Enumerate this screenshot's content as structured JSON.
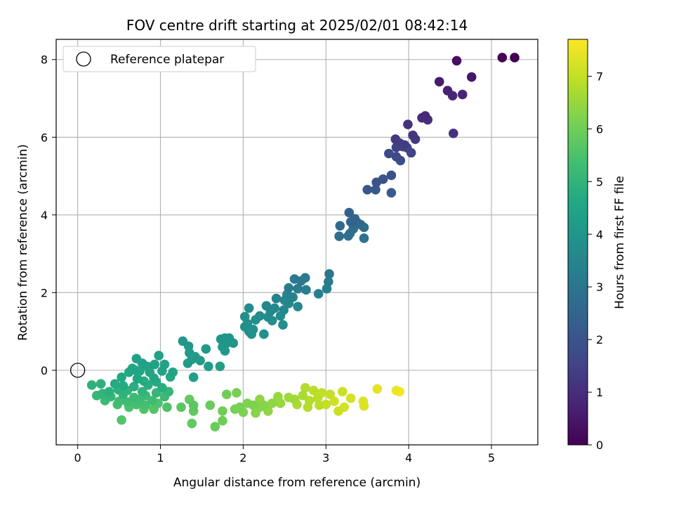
{
  "chart_data": {
    "type": "scatter",
    "title": "FOV centre drift starting at 2025/02/01 08:42:14",
    "xlabel": "Angular distance from reference (arcmin)",
    "ylabel": "Rotation from reference (arcmin)",
    "xlim": [
      -0.26,
      5.56
    ],
    "ylim": [
      -1.92,
      8.52
    ],
    "xticks": [
      0,
      1,
      2,
      3,
      4,
      5
    ],
    "yticks": [
      0,
      2,
      4,
      6,
      8
    ],
    "grid": true,
    "legend": {
      "location": "upper-left",
      "entries": [
        {
          "label": "Reference platepar",
          "marker": "open-circle",
          "color": "#000000"
        }
      ]
    },
    "reference_point": {
      "x": 0,
      "y": 0
    },
    "colorbar": {
      "label": "Hours from first FF file",
      "range": [
        0,
        7.7
      ],
      "ticks": [
        0,
        1,
        2,
        3,
        4,
        5,
        6,
        7
      ],
      "colormap": "viridis"
    },
    "points": [
      {
        "x": 5.28,
        "y": 8.05,
        "hours": 0.0
      },
      {
        "x": 5.13,
        "y": 8.05,
        "hours": 0.1
      },
      {
        "x": 4.58,
        "y": 7.97,
        "hours": 0.3
      },
      {
        "x": 4.76,
        "y": 7.55,
        "hours": 0.5
      },
      {
        "x": 4.37,
        "y": 7.43,
        "hours": 0.6
      },
      {
        "x": 4.47,
        "y": 7.2,
        "hours": 0.7
      },
      {
        "x": 4.65,
        "y": 7.1,
        "hours": 0.8
      },
      {
        "x": 4.53,
        "y": 7.07,
        "hours": 0.8
      },
      {
        "x": 4.2,
        "y": 6.55,
        "hours": 0.9
      },
      {
        "x": 4.16,
        "y": 6.5,
        "hours": 1.0
      },
      {
        "x": 4.23,
        "y": 6.45,
        "hours": 1.0
      },
      {
        "x": 3.99,
        "y": 6.33,
        "hours": 1.1
      },
      {
        "x": 4.54,
        "y": 6.1,
        "hours": 1.1
      },
      {
        "x": 4.05,
        "y": 6.05,
        "hours": 1.2
      },
      {
        "x": 3.84,
        "y": 5.95,
        "hours": 1.3
      },
      {
        "x": 4.08,
        "y": 5.95,
        "hours": 1.3
      },
      {
        "x": 3.89,
        "y": 5.85,
        "hours": 1.4
      },
      {
        "x": 3.95,
        "y": 5.8,
        "hours": 1.4
      },
      {
        "x": 3.93,
        "y": 5.76,
        "hours": 1.5
      },
      {
        "x": 3.85,
        "y": 5.74,
        "hours": 1.5
      },
      {
        "x": 3.98,
        "y": 5.73,
        "hours": 1.6
      },
      {
        "x": 4.03,
        "y": 5.6,
        "hours": 1.6
      },
      {
        "x": 3.76,
        "y": 5.58,
        "hours": 1.7
      },
      {
        "x": 3.85,
        "y": 5.5,
        "hours": 1.7
      },
      {
        "x": 3.9,
        "y": 5.4,
        "hours": 1.8
      },
      {
        "x": 3.79,
        "y": 5.02,
        "hours": 1.9
      },
      {
        "x": 3.69,
        "y": 4.92,
        "hours": 2.0
      },
      {
        "x": 3.61,
        "y": 4.84,
        "hours": 2.0
      },
      {
        "x": 3.5,
        "y": 4.65,
        "hours": 2.1
      },
      {
        "x": 3.6,
        "y": 4.65,
        "hours": 2.1
      },
      {
        "x": 3.79,
        "y": 4.57,
        "hours": 2.2
      },
      {
        "x": 3.28,
        "y": 4.06,
        "hours": 2.4
      },
      {
        "x": 3.35,
        "y": 3.9,
        "hours": 2.5
      },
      {
        "x": 3.3,
        "y": 3.82,
        "hours": 2.5
      },
      {
        "x": 3.38,
        "y": 3.8,
        "hours": 2.6
      },
      {
        "x": 3.42,
        "y": 3.75,
        "hours": 2.6
      },
      {
        "x": 3.17,
        "y": 3.72,
        "hours": 2.6
      },
      {
        "x": 3.46,
        "y": 3.68,
        "hours": 2.7
      },
      {
        "x": 3.33,
        "y": 3.64,
        "hours": 2.7
      },
      {
        "x": 3.29,
        "y": 3.52,
        "hours": 2.8
      },
      {
        "x": 3.27,
        "y": 3.46,
        "hours": 2.8
      },
      {
        "x": 3.16,
        "y": 3.45,
        "hours": 2.8
      },
      {
        "x": 3.46,
        "y": 3.4,
        "hours": 2.9
      },
      {
        "x": 3.04,
        "y": 2.48,
        "hours": 3.0
      },
      {
        "x": 2.62,
        "y": 2.35,
        "hours": 3.1
      },
      {
        "x": 2.75,
        "y": 2.38,
        "hours": 3.1
      },
      {
        "x": 2.7,
        "y": 2.3,
        "hours": 3.1
      },
      {
        "x": 3.03,
        "y": 2.28,
        "hours": 3.2
      },
      {
        "x": 2.55,
        "y": 2.12,
        "hours": 3.2
      },
      {
        "x": 2.66,
        "y": 2.1,
        "hours": 3.2
      },
      {
        "x": 2.76,
        "y": 2.07,
        "hours": 3.3
      },
      {
        "x": 3.01,
        "y": 2.1,
        "hours": 3.3
      },
      {
        "x": 2.91,
        "y": 1.97,
        "hours": 3.3
      },
      {
        "x": 2.53,
        "y": 1.95,
        "hours": 3.4
      },
      {
        "x": 2.6,
        "y": 1.88,
        "hours": 3.4
      },
      {
        "x": 2.4,
        "y": 1.85,
        "hours": 3.4
      },
      {
        "x": 2.5,
        "y": 1.8,
        "hours": 3.5
      },
      {
        "x": 2.55,
        "y": 1.72,
        "hours": 3.5
      },
      {
        "x": 2.28,
        "y": 1.66,
        "hours": 3.5
      },
      {
        "x": 2.38,
        "y": 1.6,
        "hours": 3.6
      },
      {
        "x": 2.66,
        "y": 1.64,
        "hours": 3.6
      },
      {
        "x": 2.49,
        "y": 1.55,
        "hours": 3.6
      },
      {
        "x": 2.33,
        "y": 1.52,
        "hours": 3.6
      },
      {
        "x": 2.07,
        "y": 1.6,
        "hours": 3.7
      },
      {
        "x": 2.2,
        "y": 1.4,
        "hours": 3.7
      },
      {
        "x": 2.3,
        "y": 1.37,
        "hours": 3.7
      },
      {
        "x": 2.45,
        "y": 1.4,
        "hours": 3.7
      },
      {
        "x": 2.02,
        "y": 1.38,
        "hours": 3.8
      },
      {
        "x": 2.15,
        "y": 1.3,
        "hours": 3.8
      },
      {
        "x": 2.35,
        "y": 1.28,
        "hours": 3.8
      },
      {
        "x": 2.05,
        "y": 1.2,
        "hours": 3.8
      },
      {
        "x": 2.48,
        "y": 1.17,
        "hours": 3.8
      },
      {
        "x": 2.02,
        "y": 1.12,
        "hours": 3.9
      },
      {
        "x": 2.12,
        "y": 1.05,
        "hours": 3.9
      },
      {
        "x": 2.07,
        "y": 1.0,
        "hours": 3.9
      },
      {
        "x": 2.25,
        "y": 0.93,
        "hours": 3.9
      },
      {
        "x": 2.1,
        "y": 0.93,
        "hours": 3.9
      },
      {
        "x": 1.78,
        "y": 0.83,
        "hours": 4.0
      },
      {
        "x": 1.83,
        "y": 0.83,
        "hours": 4.0
      },
      {
        "x": 1.73,
        "y": 0.8,
        "hours": 4.0
      },
      {
        "x": 1.8,
        "y": 0.7,
        "hours": 4.0
      },
      {
        "x": 1.88,
        "y": 0.7,
        "hours": 4.0
      },
      {
        "x": 1.27,
        "y": 0.75,
        "hours": 4.1
      },
      {
        "x": 1.75,
        "y": 0.6,
        "hours": 4.1
      },
      {
        "x": 1.34,
        "y": 0.62,
        "hours": 4.1
      },
      {
        "x": 1.78,
        "y": 0.5,
        "hours": 4.1
      },
      {
        "x": 1.55,
        "y": 0.55,
        "hours": 4.1
      },
      {
        "x": 1.35,
        "y": 0.45,
        "hours": 4.2
      },
      {
        "x": 1.42,
        "y": 0.35,
        "hours": 4.2
      },
      {
        "x": 1.38,
        "y": 0.28,
        "hours": 4.2
      },
      {
        "x": 1.48,
        "y": 0.25,
        "hours": 4.2
      },
      {
        "x": 1.33,
        "y": 0.18,
        "hours": 4.2
      },
      {
        "x": 1.58,
        "y": 0.1,
        "hours": 4.3
      },
      {
        "x": 1.72,
        "y": 0.1,
        "hours": 4.3
      },
      {
        "x": 1.4,
        "y": -0.18,
        "hours": 4.3
      },
      {
        "x": 0.98,
        "y": 0.38,
        "hours": 4.4
      },
      {
        "x": 0.71,
        "y": 0.3,
        "hours": 4.4
      },
      {
        "x": 0.93,
        "y": 0.15,
        "hours": 4.4
      },
      {
        "x": 1.05,
        "y": 0.15,
        "hours": 4.4
      },
      {
        "x": 0.78,
        "y": 0.18,
        "hours": 4.4
      },
      {
        "x": 0.84,
        "y": 0.1,
        "hours": 4.5
      },
      {
        "x": 0.66,
        "y": 0.05,
        "hours": 4.5
      },
      {
        "x": 0.7,
        "y": 0.0,
        "hours": 4.5
      },
      {
        "x": 0.75,
        "y": -0.02,
        "hours": 4.5
      },
      {
        "x": 0.87,
        "y": -0.05,
        "hours": 4.5
      },
      {
        "x": 1.02,
        "y": -0.02,
        "hours": 4.5
      },
      {
        "x": 1.15,
        "y": -0.05,
        "hours": 4.5
      },
      {
        "x": 0.62,
        "y": -0.05,
        "hours": 4.6
      },
      {
        "x": 0.53,
        "y": -0.18,
        "hours": 4.6
      },
      {
        "x": 0.92,
        "y": -0.2,
        "hours": 4.6
      },
      {
        "x": 0.72,
        "y": -0.22,
        "hours": 4.6
      },
      {
        "x": 1.12,
        "y": -0.17,
        "hours": 4.6
      },
      {
        "x": 0.8,
        "y": -0.28,
        "hours": 4.7
      },
      {
        "x": 0.95,
        "y": -0.3,
        "hours": 4.7
      },
      {
        "x": 0.45,
        "y": -0.35,
        "hours": 4.7
      },
      {
        "x": 0.55,
        "y": -0.4,
        "hours": 4.7
      },
      {
        "x": 0.68,
        "y": -0.42,
        "hours": 4.8
      },
      {
        "x": 0.85,
        "y": -0.38,
        "hours": 4.8
      },
      {
        "x": 1.02,
        "y": -0.45,
        "hours": 4.8
      },
      {
        "x": 0.17,
        "y": -0.38,
        "hours": 4.9
      },
      {
        "x": 0.28,
        "y": -0.35,
        "hours": 4.9
      },
      {
        "x": 0.49,
        "y": -0.5,
        "hours": 4.9
      },
      {
        "x": 0.38,
        "y": -0.55,
        "hours": 4.9
      },
      {
        "x": 0.6,
        "y": -0.52,
        "hours": 5.0
      },
      {
        "x": 0.78,
        "y": -0.55,
        "hours": 5.0
      },
      {
        "x": 0.3,
        "y": -0.6,
        "hours": 5.0
      },
      {
        "x": 0.55,
        "y": -0.62,
        "hours": 5.0
      },
      {
        "x": 0.95,
        "y": -0.58,
        "hours": 5.1
      },
      {
        "x": 1.1,
        "y": -0.55,
        "hours": 5.1
      },
      {
        "x": 0.23,
        "y": -0.65,
        "hours": 5.1
      },
      {
        "x": 0.4,
        "y": -0.68,
        "hours": 5.1
      },
      {
        "x": 0.68,
        "y": -0.7,
        "hours": 5.2
      },
      {
        "x": 0.82,
        "y": -0.65,
        "hours": 5.2
      },
      {
        "x": 1.05,
        "y": -0.68,
        "hours": 5.2
      },
      {
        "x": 0.33,
        "y": -0.78,
        "hours": 5.2
      },
      {
        "x": 0.5,
        "y": -0.8,
        "hours": 5.3
      },
      {
        "x": 0.75,
        "y": -0.75,
        "hours": 5.3
      },
      {
        "x": 0.9,
        "y": -0.78,
        "hours": 5.3
      },
      {
        "x": 0.6,
        "y": -0.82,
        "hours": 5.3
      },
      {
        "x": 0.48,
        "y": -0.88,
        "hours": 5.4
      },
      {
        "x": 0.71,
        "y": -0.88,
        "hours": 5.4
      },
      {
        "x": 0.82,
        "y": -0.9,
        "hours": 5.4
      },
      {
        "x": 0.97,
        "y": -0.85,
        "hours": 5.5
      },
      {
        "x": 0.62,
        "y": -0.95,
        "hours": 5.5
      },
      {
        "x": 1.08,
        "y": -0.95,
        "hours": 5.5
      },
      {
        "x": 0.8,
        "y": -1.0,
        "hours": 5.6
      },
      {
        "x": 0.92,
        "y": -1.0,
        "hours": 5.6
      },
      {
        "x": 0.53,
        "y": -1.28,
        "hours": 5.6
      },
      {
        "x": 1.25,
        "y": -0.95,
        "hours": 5.7
      },
      {
        "x": 1.4,
        "y": -0.9,
        "hours": 5.7
      },
      {
        "x": 1.35,
        "y": -0.75,
        "hours": 5.8
      },
      {
        "x": 1.4,
        "y": -1.05,
        "hours": 5.8
      },
      {
        "x": 1.38,
        "y": -1.37,
        "hours": 5.8
      },
      {
        "x": 1.6,
        "y": -0.9,
        "hours": 5.9
      },
      {
        "x": 1.66,
        "y": -1.45,
        "hours": 5.9
      },
      {
        "x": 1.75,
        "y": -1.05,
        "hours": 6.0
      },
      {
        "x": 1.75,
        "y": -1.3,
        "hours": 6.0
      },
      {
        "x": 1.8,
        "y": -0.62,
        "hours": 6.0
      },
      {
        "x": 1.92,
        "y": -0.58,
        "hours": 6.1
      },
      {
        "x": 1.9,
        "y": -1.0,
        "hours": 6.1
      },
      {
        "x": 1.96,
        "y": -0.95,
        "hours": 6.1
      },
      {
        "x": 2.0,
        "y": -1.08,
        "hours": 6.2
      },
      {
        "x": 2.05,
        "y": -0.85,
        "hours": 6.2
      },
      {
        "x": 2.12,
        "y": -0.9,
        "hours": 6.2
      },
      {
        "x": 2.15,
        "y": -1.1,
        "hours": 6.3
      },
      {
        "x": 2.2,
        "y": -0.95,
        "hours": 6.3
      },
      {
        "x": 2.25,
        "y": -0.9,
        "hours": 6.3
      },
      {
        "x": 2.3,
        "y": -1.05,
        "hours": 6.4
      },
      {
        "x": 2.35,
        "y": -0.85,
        "hours": 6.4
      },
      {
        "x": 2.2,
        "y": -0.75,
        "hours": 6.4
      },
      {
        "x": 2.42,
        "y": -0.68,
        "hours": 6.5
      },
      {
        "x": 2.45,
        "y": -0.85,
        "hours": 6.5
      },
      {
        "x": 2.55,
        "y": -0.7,
        "hours": 6.6
      },
      {
        "x": 2.62,
        "y": -0.75,
        "hours": 6.6
      },
      {
        "x": 2.65,
        "y": -0.88,
        "hours": 6.7
      },
      {
        "x": 2.72,
        "y": -0.65,
        "hours": 6.7
      },
      {
        "x": 2.75,
        "y": -0.45,
        "hours": 6.8
      },
      {
        "x": 2.8,
        "y": -0.78,
        "hours": 6.8
      },
      {
        "x": 2.78,
        "y": -0.95,
        "hours": 6.8
      },
      {
        "x": 2.85,
        "y": -0.52,
        "hours": 6.9
      },
      {
        "x": 2.9,
        "y": -0.72,
        "hours": 6.9
      },
      {
        "x": 2.92,
        "y": -0.9,
        "hours": 6.9
      },
      {
        "x": 2.95,
        "y": -0.58,
        "hours": 7.0
      },
      {
        "x": 3.0,
        "y": -0.88,
        "hours": 7.0
      },
      {
        "x": 3.05,
        "y": -0.62,
        "hours": 7.0
      },
      {
        "x": 3.1,
        "y": -0.8,
        "hours": 7.1
      },
      {
        "x": 3.15,
        "y": -1.05,
        "hours": 7.1
      },
      {
        "x": 3.2,
        "y": -0.55,
        "hours": 7.1
      },
      {
        "x": 3.22,
        "y": -0.95,
        "hours": 7.2
      },
      {
        "x": 3.3,
        "y": -0.72,
        "hours": 7.2
      },
      {
        "x": 3.45,
        "y": -0.8,
        "hours": 7.3
      },
      {
        "x": 3.46,
        "y": -0.92,
        "hours": 7.3
      },
      {
        "x": 3.62,
        "y": -0.48,
        "hours": 7.4
      },
      {
        "x": 3.85,
        "y": -0.52,
        "hours": 7.5
      },
      {
        "x": 3.89,
        "y": -0.55,
        "hours": 7.6
      }
    ]
  }
}
